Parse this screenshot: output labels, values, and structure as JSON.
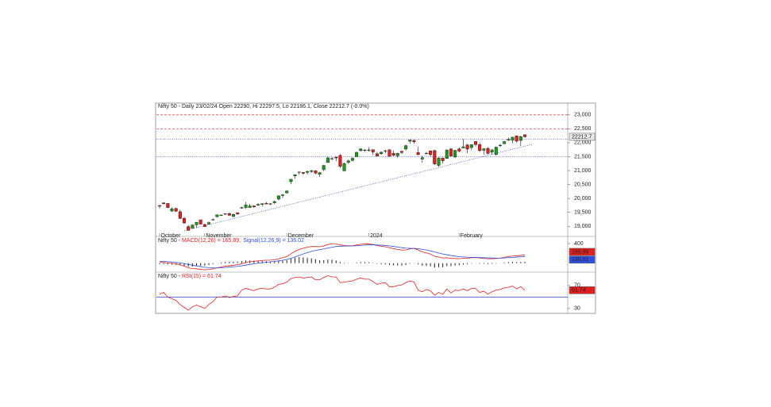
{
  "chart_data": [
    {
      "type": "candlestick",
      "title": "Nifty 50 - Daily 23/02/24 Open 22290, Hi 22297.5, Lo 22186.1, Close 22212.7 (-0.0%)",
      "categories": [
        "October",
        null,
        null,
        null,
        null,
        null,
        null,
        null,
        null,
        null,
        null,
        "November",
        null,
        null,
        null,
        null,
        null,
        null,
        null,
        null,
        null,
        null,
        null,
        null,
        null,
        null,
        null,
        null,
        null,
        null,
        null,
        "December",
        null,
        null,
        null,
        null,
        null,
        null,
        null,
        null,
        null,
        null,
        null,
        null,
        null,
        null,
        null,
        null,
        null,
        null,
        null,
        "2024",
        null,
        null,
        null,
        null,
        null,
        null,
        null,
        null,
        null,
        null,
        null,
        null,
        null,
        null,
        null,
        null,
        null,
        null,
        null,
        null,
        null,
        "February",
        null,
        null,
        null,
        null,
        null,
        null,
        null,
        null,
        null,
        null,
        null,
        null,
        null,
        null,
        null,
        null
      ],
      "ohlc": [
        [
          19738,
          19781,
          19636,
          19731
        ],
        [
          19843,
          19849,
          19775,
          19811
        ],
        [
          19820,
          19840,
          19659,
          19671
        ],
        [
          19545,
          19681,
          19518,
          19624
        ],
        [
          19640,
          19660,
          19518,
          19542
        ],
        [
          19522,
          19593,
          19256,
          19281
        ],
        [
          19286,
          19347,
          19074,
          19122
        ],
        [
          18990,
          19041,
          18837,
          18857
        ],
        [
          18929,
          19076,
          18926,
          19047
        ],
        [
          19053,
          19158,
          18941,
          19140
        ],
        [
          19232,
          19233,
          19056,
          19079
        ],
        [
          19064,
          19096,
          18973,
          18989
        ],
        [
          19080,
          19175,
          19064,
          19133
        ],
        [
          19241,
          19276,
          19210,
          19230
        ],
        [
          19346,
          19423,
          19309,
          19412
        ],
        [
          19404,
          19423,
          19368,
          19406
        ],
        [
          19449,
          19464,
          19401,
          19443
        ],
        [
          19457,
          19495,
          19379,
          19395
        ],
        [
          19351,
          19451,
          19329,
          19425
        ],
        [
          19487,
          19495,
          19412,
          19443
        ],
        [
          19651,
          19700,
          19627,
          19675
        ],
        [
          19674,
          19875,
          19627,
          19765
        ],
        [
          19674,
          19806,
          19667,
          19732
        ],
        [
          19731,
          19756,
          19670,
          19694
        ],
        [
          19753,
          19826,
          19737,
          19783
        ],
        [
          19784,
          19825,
          19703,
          19812
        ],
        [
          19828,
          19875,
          19788,
          19802
        ],
        [
          19809,
          19832,
          19765,
          19795
        ],
        [
          19844,
          19916,
          19800,
          19889
        ],
        [
          19976,
          20105,
          19926,
          20097
        ],
        [
          20108,
          20158,
          20015,
          20133
        ],
        [
          20194,
          20291,
          20183,
          20268
        ],
        [
          20601,
          20702,
          20508,
          20687
        ],
        [
          20809,
          20864,
          20711,
          20855
        ],
        [
          20950,
          20962,
          20852,
          20937
        ],
        [
          20932,
          20941,
          20850,
          20901
        ],
        [
          20935,
          21006,
          20863,
          20969
        ],
        [
          20965,
          21026,
          20923,
          20997
        ],
        [
          20996,
          21011,
          20868,
          20906
        ],
        [
          20866,
          20950,
          20769,
          20926
        ],
        [
          21033,
          21210,
          20976,
          21183
        ],
        [
          21287,
          21492,
          21287,
          21457
        ],
        [
          21434,
          21482,
          21365,
          21418
        ],
        [
          21477,
          21505,
          21337,
          21453
        ],
        [
          21544,
          21593,
          21088,
          21150
        ],
        [
          20990,
          21289,
          20977,
          21255
        ],
        [
          21296,
          21390,
          21233,
          21349
        ],
        [
          21366,
          21477,
          21330,
          21441
        ],
        [
          21497,
          21676,
          21495,
          21655
        ],
        [
          21716,
          21801,
          21679,
          21779
        ],
        [
          21737,
          21770,
          21676,
          21731
        ],
        [
          21728,
          21835,
          21681,
          21742
        ],
        [
          21752,
          21756,
          21555,
          21666
        ],
        [
          21605,
          21678,
          21501,
          21518
        ],
        [
          21605,
          21685,
          21564,
          21658
        ],
        [
          21706,
          21749,
          21629,
          21711
        ],
        [
          21747,
          21763,
          21492,
          21513
        ],
        [
          21617,
          21724,
          21518,
          21545
        ],
        [
          21530,
          21641,
          21449,
          21619
        ],
        [
          21689,
          21727,
          21593,
          21648
        ],
        [
          21773,
          21928,
          21715,
          21895
        ],
        [
          22054,
          22116,
          21965,
          22097
        ],
        [
          22080,
          22124,
          21969,
          22032
        ],
        [
          21647,
          21851,
          21550,
          21572
        ],
        [
          21414,
          21539,
          21285,
          21462
        ],
        [
          21615,
          21671,
          21575,
          21622
        ],
        [
          21707,
          21727,
          21500,
          21571
        ],
        [
          21716,
          21751,
          21192,
          21239
        ],
        [
          21185,
          21482,
          21137,
          21454
        ],
        [
          21454,
          21460,
          21247,
          21353
        ],
        [
          21433,
          21763,
          21430,
          21738
        ],
        [
          21775,
          21813,
          21501,
          21522
        ],
        [
          21487,
          21742,
          21448,
          21725
        ],
        [
          21780,
          21832,
          21659,
          21697
        ],
        [
          21812,
          22127,
          21806,
          21854
        ],
        [
          21921,
          21964,
          21629,
          21771
        ],
        [
          21825,
          21951,
          21737,
          21929
        ],
        [
          22045,
          22053,
          21860,
          21930
        ],
        [
          21932,
          22012,
          21665,
          21718
        ],
        [
          21727,
          21805,
          21574,
          21783
        ],
        [
          21800,
          21832,
          21574,
          21616
        ],
        [
          21664,
          21766,
          21575,
          21743
        ],
        [
          21579,
          21870,
          21531,
          21840
        ],
        [
          21906,
          21953,
          21835,
          21911
        ],
        [
          21963,
          22068,
          21961,
          22041
        ],
        [
          22092,
          22186,
          22060,
          22122
        ],
        [
          22091,
          22215,
          21981,
          22197
        ],
        [
          22249,
          22249,
          21997,
          22055
        ],
        [
          22081,
          22252,
          21875,
          22218
        ],
        [
          22290,
          22297.5,
          22186.1,
          22212.7
        ]
      ],
      "up_color": "#1f9a1f",
      "down_color": "#e02020",
      "ylim": [
        18750,
        23250
      ],
      "yticks": [
        {
          "value": 23000,
          "label": "23,000"
        },
        {
          "value": 22500,
          "label": "22,500"
        },
        {
          "value": 22000,
          "label": "22,000"
        },
        {
          "value": 21500,
          "label": "21,500"
        },
        {
          "value": 21000,
          "label": "21,000"
        },
        {
          "value": 20500,
          "label": "20,500"
        },
        {
          "value": 20000,
          "label": "20,000"
        },
        {
          "value": 19500,
          "label": "19,500"
        },
        {
          "value": 19000,
          "label": "19,000"
        }
      ],
      "levels": [
        {
          "value": 23000,
          "color": "#e03030",
          "style": "dashed"
        },
        {
          "value": 22500,
          "color": "#e03030",
          "style": "dashed"
        },
        {
          "value": 22120,
          "color": "#3040d0",
          "style": "dotted"
        },
        {
          "value": 21500,
          "color": "#3040d0",
          "style": "dotted"
        }
      ],
      "trendline": {
        "color": "#3040d0",
        "points": [
          [
            6,
            18840
          ],
          [
            91,
            21950
          ]
        ]
      }
    },
    {
      "type": "macd",
      "title": "Nifty 50 - ",
      "series": [
        {
          "name": "MACD(12,26) = 165.89,",
          "color": "#e02020",
          "values": [
            20,
            15,
            5,
            -5,
            -15,
            -35,
            -60,
            -95,
            -110,
            -115,
            -125,
            -135,
            -130,
            -115,
            -95,
            -78,
            -62,
            -52,
            -42,
            -32,
            -10,
            15,
            30,
            38,
            48,
            56,
            60,
            62,
            68,
            90,
            110,
            135,
            190,
            240,
            280,
            305,
            325,
            340,
            340,
            335,
            350,
            380,
            395,
            395,
            370,
            360,
            355,
            355,
            370,
            385,
            390,
            390,
            380,
            360,
            345,
            335,
            315,
            295,
            280,
            265,
            270,
            290,
            300,
            270,
            230,
            210,
            185,
            140,
            125,
            105,
            110,
            95,
            95,
            90,
            100,
            100,
            110,
            115,
            105,
            100,
            90,
            90,
            95,
            105,
            120,
            135,
            145,
            148,
            160,
            165.89
          ]
        },
        {
          "name": "Signal(12,26,9) = 136.02",
          "color": "#3050e0",
          "values": [
            40,
            36,
            30,
            23,
            15,
            5,
            -8,
            -25,
            -42,
            -56,
            -70,
            -83,
            -92,
            -97,
            -97,
            -93,
            -87,
            -80,
            -73,
            -65,
            -54,
            -40,
            -26,
            -13,
            -1,
            10,
            20,
            28,
            36,
            47,
            60,
            75,
            98,
            126,
            157,
            187,
            215,
            240,
            260,
            275,
            290,
            308,
            325,
            340,
            346,
            349,
            350,
            351,
            355,
            361,
            367,
            372,
            374,
            371,
            366,
            360,
            351,
            340,
            328,
            315,
            306,
            303,
            302,
            295,
            282,
            268,
            251,
            228,
            208,
            187,
            172,
            156,
            144,
            133,
            127,
            121,
            119,
            118,
            116,
            113,
            109,
            105,
            103,
            103,
            106,
            112,
            118,
            124,
            131,
            136.02
          ]
        }
      ],
      "histogram": {
        "color": "#222222",
        "values": [
          -20,
          -21,
          -25,
          -28,
          -30,
          -40,
          -52,
          -70,
          -68,
          -59,
          -55,
          -52,
          -38,
          -18,
          2,
          15,
          25,
          28,
          31,
          33,
          44,
          55,
          56,
          51,
          49,
          46,
          40,
          34,
          32,
          43,
          50,
          60,
          92,
          114,
          123,
          118,
          110,
          100,
          80,
          60,
          60,
          72,
          70,
          55,
          24,
          11,
          5,
          4,
          15,
          24,
          23,
          18,
          6,
          -11,
          -21,
          -25,
          -36,
          -45,
          -48,
          -50,
          -36,
          -13,
          -2,
          -25,
          -52,
          -58,
          -66,
          -88,
          -83,
          -82,
          -62,
          -61,
          -49,
          -43,
          -27,
          -21,
          -9,
          -3,
          -11,
          -13,
          -19,
          -15,
          -8,
          2,
          14,
          23,
          27,
          24,
          29,
          29.87
        ]
      },
      "ylim": [
        -150,
        480
      ],
      "yticks": [
        400
      ]
    },
    {
      "type": "rsi",
      "title": "Nifty 50 - ",
      "series": [
        {
          "name": "RSI(15) = 61.74",
          "color": "#e02020",
          "values": [
            55,
            58,
            50,
            47,
            44,
            37,
            32,
            27,
            33,
            36,
            33,
            30,
            37,
            42,
            50,
            50,
            52,
            49,
            51,
            52,
            62,
            65,
            63,
            61,
            64,
            65,
            64,
            64,
            67,
            72,
            73,
            76,
            82,
            84,
            85,
            83,
            84,
            85,
            80,
            80,
            84,
            87,
            85,
            85,
            75,
            76,
            77,
            78,
            81,
            83,
            81,
            81,
            77,
            72,
            74,
            75,
            68,
            68,
            70,
            71,
            75,
            78,
            76,
            62,
            59,
            63,
            61,
            53,
            58,
            55,
            64,
            57,
            62,
            61,
            64,
            61,
            65,
            65,
            58,
            60,
            55,
            59,
            62,
            63,
            66,
            67,
            69,
            64,
            68,
            61.74
          ]
        }
      ],
      "levels": [
        {
          "value": 50,
          "color": "#3040d0"
        }
      ],
      "ylim": [
        21.5,
        90.5
      ],
      "yticks": [
        70,
        30
      ]
    }
  ]
}
